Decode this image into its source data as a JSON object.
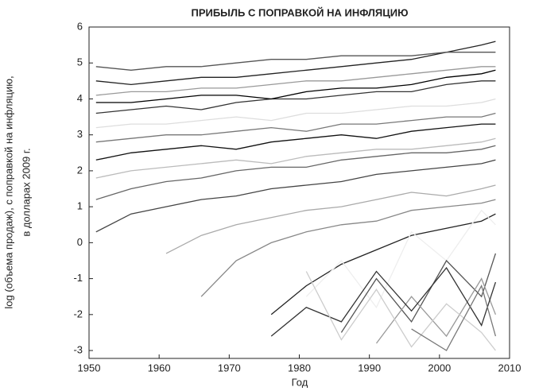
{
  "chart_data": {
    "type": "line",
    "title": "ПРИБЫЛЬ С ПОПРАВКОЙ НА ИНФЛЯЦИЮ",
    "x_label": "Год",
    "y_label": [
      "log (объема продаж), с поправкой на инфляцию,",
      "в долларах 2009 г."
    ],
    "x": [
      1951,
      1956,
      1961,
      1966,
      1971,
      1976,
      1981,
      1986,
      1991,
      1996,
      2001,
      2006,
      2008
    ],
    "series": [
      {
        "color": "#222222",
        "values": [
          4.5,
          4.4,
          4.5,
          4.6,
          4.6,
          4.7,
          4.8,
          4.9,
          5.0,
          5.1,
          5.3,
          5.5,
          5.6
        ]
      },
      {
        "color": "#555555",
        "values": [
          4.9,
          4.8,
          4.9,
          4.9,
          5.0,
          5.1,
          5.1,
          5.2,
          5.2,
          5.2,
          5.3,
          5.3,
          5.3
        ]
      },
      {
        "color": "#999999",
        "values": [
          4.1,
          4.2,
          4.2,
          4.3,
          4.3,
          4.4,
          4.5,
          4.5,
          4.6,
          4.7,
          4.8,
          4.9,
          4.9
        ]
      },
      {
        "color": "#333333",
        "values": [
          3.6,
          3.7,
          3.8,
          3.7,
          3.9,
          4.0,
          4.0,
          4.1,
          4.2,
          4.2,
          4.4,
          4.5,
          4.5
        ]
      },
      {
        "color": "#dddddd",
        "values": [
          3.2,
          3.3,
          3.3,
          3.4,
          3.5,
          3.4,
          3.6,
          3.6,
          3.7,
          3.8,
          3.8,
          3.9,
          4.0
        ]
      },
      {
        "color": "#777777",
        "values": [
          2.8,
          2.9,
          3.0,
          3.0,
          3.1,
          3.2,
          3.1,
          3.3,
          3.3,
          3.4,
          3.5,
          3.5,
          3.6
        ]
      },
      {
        "color": "#111111",
        "values": [
          2.3,
          2.5,
          2.6,
          2.7,
          2.6,
          2.8,
          2.9,
          3.0,
          2.9,
          3.1,
          3.2,
          3.3,
          3.3
        ]
      },
      {
        "color": "#bbbbbb",
        "values": [
          1.8,
          2.0,
          2.1,
          2.2,
          2.3,
          2.2,
          2.4,
          2.5,
          2.6,
          2.6,
          2.7,
          2.8,
          2.9
        ]
      },
      {
        "color": "#666666",
        "values": [
          1.2,
          1.5,
          1.7,
          1.8,
          2.0,
          2.1,
          2.1,
          2.3,
          2.4,
          2.5,
          2.5,
          2.6,
          2.7
        ]
      },
      {
        "color": "#444444",
        "values": [
          0.3,
          0.8,
          1.0,
          1.2,
          1.3,
          1.5,
          1.6,
          1.7,
          1.9,
          2.0,
          2.1,
          2.2,
          2.3
        ]
      },
      {
        "color": "#aaaaaa",
        "values": [
          null,
          null,
          -0.3,
          0.2,
          0.5,
          0.7,
          0.9,
          1.0,
          1.2,
          1.4,
          1.3,
          1.5,
          1.6
        ]
      },
      {
        "color": "#888888",
        "values": [
          null,
          null,
          null,
          -1.5,
          -0.5,
          0,
          0.3,
          0.5,
          0.6,
          0.9,
          1.0,
          1.1,
          1.2
        ]
      },
      {
        "color": "#222222",
        "values": [
          null,
          null,
          null,
          null,
          null,
          -2.0,
          -1.2,
          -0.6,
          -0.2,
          0.2,
          0.4,
          0.6,
          0.8
        ]
      },
      {
        "color": "#eeeeee",
        "values": [
          null,
          null,
          null,
          null,
          null,
          null,
          -1.5,
          -0.5,
          -1.8,
          0.3,
          -0.5,
          0.9,
          0.5
        ]
      },
      {
        "color": "#555555",
        "values": [
          null,
          null,
          null,
          null,
          null,
          null,
          null,
          -2.5,
          -1.0,
          -2.2,
          -0.5,
          -1.5,
          -0.3
        ]
      },
      {
        "color": "#999999",
        "values": [
          null,
          null,
          null,
          null,
          null,
          null,
          null,
          null,
          -2.8,
          -1.5,
          -2.6,
          -1.0,
          -2.0
        ]
      },
      {
        "color": "#333333",
        "values": [
          null,
          null,
          null,
          null,
          null,
          -2.6,
          -1.8,
          -2.2,
          -0.8,
          -1.9,
          -0.7,
          -2.3,
          -1.1
        ]
      },
      {
        "color": "#cccccc",
        "values": [
          null,
          null,
          null,
          null,
          null,
          null,
          -0.8,
          -2.7,
          -1.3,
          -2.9,
          -1.7,
          -2.5,
          -3.0
        ]
      },
      {
        "color": "#777777",
        "values": [
          null,
          null,
          null,
          null,
          null,
          null,
          null,
          null,
          null,
          -2.4,
          -3.0,
          -1.2,
          -2.6
        ]
      },
      {
        "color": "#000000",
        "values": [
          3.9,
          3.9,
          4.0,
          4.1,
          4.1,
          4.0,
          4.2,
          4.3,
          4.3,
          4.4,
          4.6,
          4.7,
          4.8
        ]
      }
    ],
    "xlim": [
      1950,
      2010
    ],
    "xticks": [
      1950,
      1960,
      1970,
      1980,
      1990,
      2000,
      2010
    ],
    "ylim": [
      -3.22,
      6
    ],
    "yticks": [
      -3,
      -2,
      -1,
      0,
      1,
      2,
      3,
      4,
      5,
      6
    ],
    "grid": false
  }
}
